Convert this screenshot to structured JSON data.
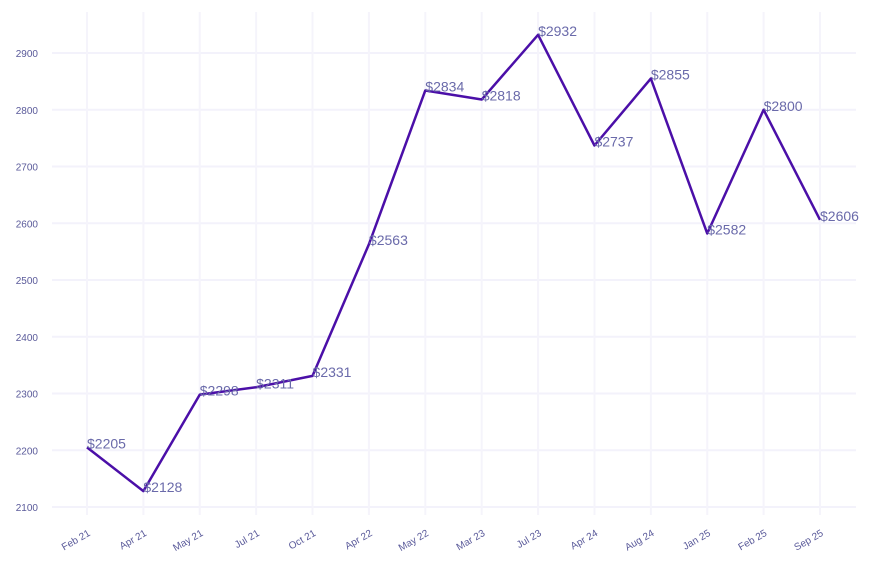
{
  "chart_data": {
    "type": "line",
    "title": "",
    "xlabel": "",
    "ylabel": "",
    "categories": [
      "Feb 21",
      "Apr 21",
      "May 21",
      "Jul 21",
      "Oct 21",
      "Apr 22",
      "May 22",
      "Mar 23",
      "Jul 23",
      "Apr 24",
      "Aug 24",
      "Jan 25",
      "Feb 25",
      "Sep 25"
    ],
    "values": [
      2205,
      2128,
      2298,
      2311,
      2331,
      2563,
      2834,
      2818,
      2932,
      2737,
      2855,
      2582,
      2800,
      2606
    ],
    "data_labels": [
      "$2205",
      "$2128",
      "$2298",
      "$2311",
      "$2331",
      "$2563",
      "$2834",
      "$2818",
      "$2932",
      "$2737",
      "$2855",
      "$2582",
      "$2800",
      "$2606"
    ],
    "yticks": [
      2100,
      2200,
      2300,
      2400,
      2500,
      2600,
      2700,
      2800,
      2900
    ],
    "ylim": [
      2100,
      2900
    ],
    "grid": true,
    "line_color": "#4b0fa8"
  }
}
